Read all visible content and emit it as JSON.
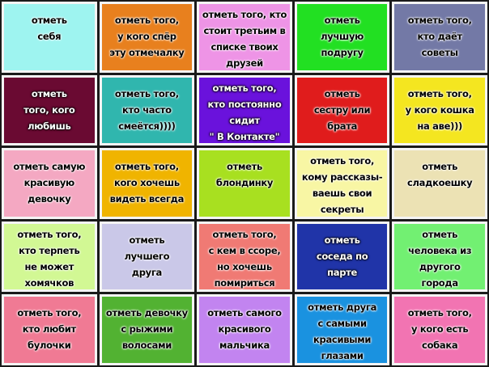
{
  "tiles": [
    {
      "color": "#9ef4f0",
      "text_style": "dark",
      "lines": [
        "отметь",
        "себя"
      ]
    },
    {
      "color": "#e8801e",
      "text_style": "dark",
      "lines": [
        "отметь того,",
        "у кого спёр",
        "эту отмечалку"
      ]
    },
    {
      "color": "#ee94e6",
      "text_style": "dark",
      "lines": [
        "отметь того, кто",
        "стоит третьим в",
        "списке твоих",
        "друзей"
      ]
    },
    {
      "color": "#22e022",
      "text_style": "dark",
      "lines": [
        "отметь",
        "лучшую",
        "подругу"
      ]
    },
    {
      "color": "#7379a6",
      "text_style": "dark",
      "lines": [
        "отметь того,",
        "кто даёт",
        "советы"
      ]
    },
    {
      "color": "#6a0a32",
      "text_style": "light",
      "lines": [
        "отметь",
        "того, кого",
        "любишь"
      ]
    },
    {
      "color": "#30b6ae",
      "text_style": "dark",
      "lines": [
        "отметь того,",
        "кто часто",
        "смеётся))))"
      ]
    },
    {
      "color": "#6a12dc",
      "text_style": "light",
      "lines": [
        "отметь того,",
        "кто постоянно",
        "сидит",
        "\" В Контакте\""
      ]
    },
    {
      "color": "#e01c1c",
      "text_style": "dark",
      "lines": [
        "отметь",
        "сестру или",
        "брата"
      ]
    },
    {
      "color": "#f4e620",
      "text_style": "dark",
      "lines": [
        "отметь того,",
        "у кого кошка",
        "на аве)))"
      ]
    },
    {
      "color": "#f4a8c2",
      "text_style": "dark",
      "lines": [
        "отметь самую",
        "красивую",
        "девочку"
      ]
    },
    {
      "color": "#f0b400",
      "text_style": "dark",
      "lines": [
        "отметь того,",
        "кого хочешь",
        "видеть всегда"
      ]
    },
    {
      "color": "#a8e020",
      "text_style": "dark",
      "lines": [
        "отметь",
        "блондинку"
      ]
    },
    {
      "color": "#f8f6a4",
      "text_style": "dark",
      "lines": [
        "отметь того,",
        "кому рассказы-",
        "ваешь свои",
        "секреты"
      ]
    },
    {
      "color": "#ece2b4",
      "text_style": "dark",
      "lines": [
        "отметь",
        "сладкоешку"
      ]
    },
    {
      "color": "#d2f894",
      "text_style": "dark",
      "lines": [
        "отметь того,",
        "кто терпеть",
        "не может",
        "хомячков"
      ]
    },
    {
      "color": "#cac8e8",
      "text_style": "dark",
      "lines": [
        "отметь",
        "лучшего",
        "друга"
      ]
    },
    {
      "color": "#f07a74",
      "text_style": "dark",
      "lines": [
        "отметь того,",
        "с кем в ссоре,",
        "но хочешь",
        "помириться"
      ]
    },
    {
      "color": "#2034a8",
      "text_style": "light",
      "lines": [
        "отметь",
        "соседа по",
        "парте"
      ]
    },
    {
      "color": "#72f072",
      "text_style": "dark",
      "lines": [
        "отметь",
        "человека из",
        "другого",
        "города"
      ]
    },
    {
      "color": "#f07a94",
      "text_style": "dark",
      "lines": [
        "отметь того,",
        "кто любит",
        "булочки"
      ]
    },
    {
      "color": "#52b232",
      "text_style": "dark",
      "lines": [
        "отметь девочку",
        "с рыжими",
        "волосами"
      ]
    },
    {
      "color": "#c284f0",
      "text_style": "dark",
      "lines": [
        "отметь самого",
        "красивого",
        "мальчика"
      ]
    },
    {
      "color": "#1a92e0",
      "text_style": "dark",
      "lines": [
        "отметь друга",
        "с самыми",
        "красивыми",
        "глазами"
      ]
    },
    {
      "color": "#f274b2",
      "text_style": "dark",
      "lines": [
        "отметь того,",
        "у кого есть",
        "собака"
      ]
    }
  ]
}
